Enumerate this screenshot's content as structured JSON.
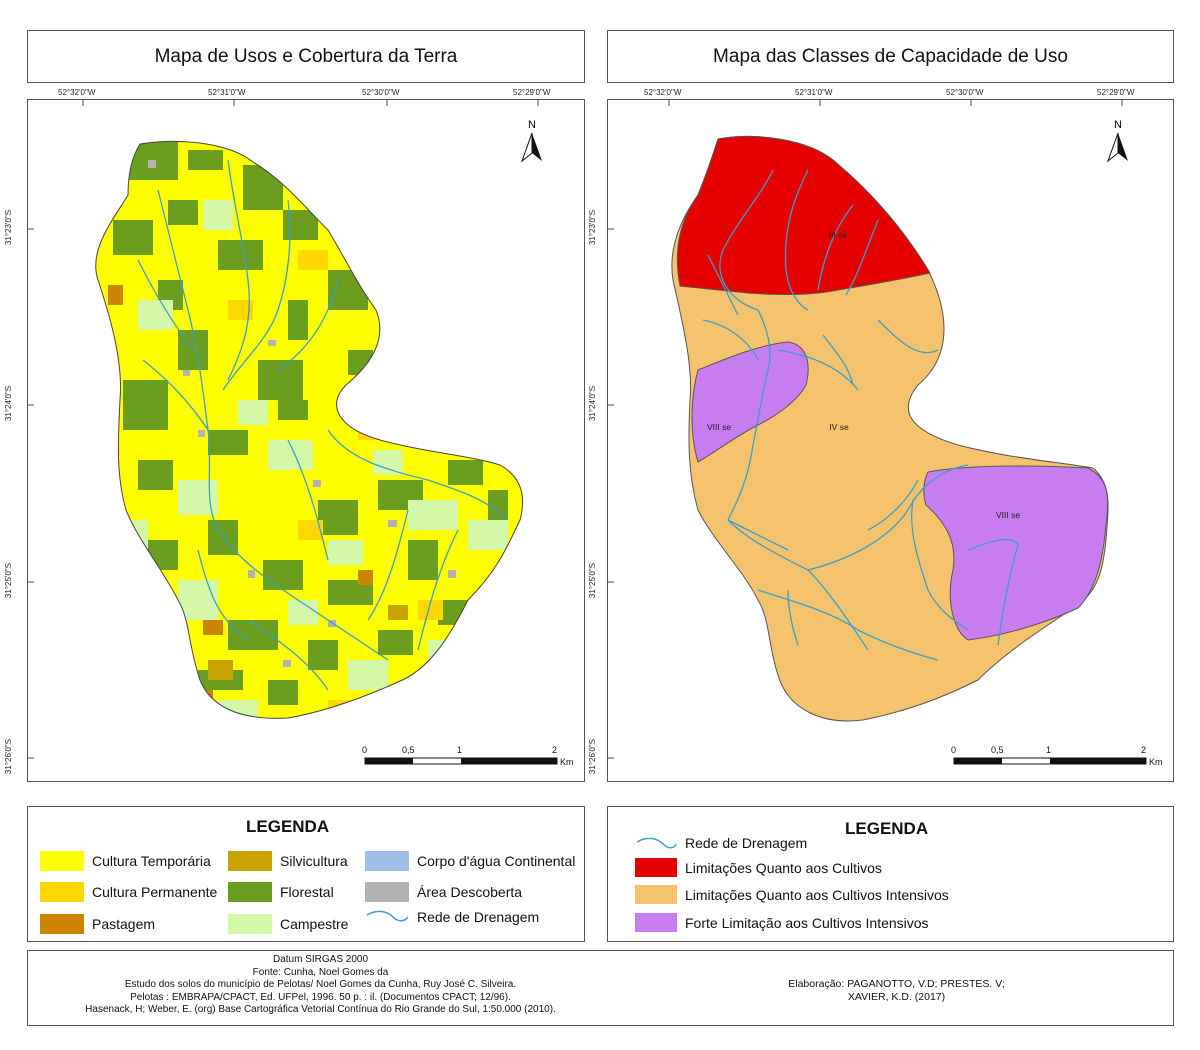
{
  "left_panel": {
    "title": "Mapa de Usos e Cobertura da Terra",
    "lon_labels": [
      "52°32'0\"W",
      "52°31'0\"W",
      "52°30'0\"W",
      "52°29'0\"W"
    ],
    "lat_labels": [
      "31°23'0\"S",
      "31°24'0\"S",
      "31°25'0\"S",
      "31°26'0\"S"
    ],
    "north_label": "N",
    "scale": {
      "ticks": [
        "0",
        "0,5",
        "1",
        "2"
      ],
      "unit": "Km"
    }
  },
  "right_panel": {
    "title": "Mapa das Classes de Capacidade de Uso",
    "lon_labels": [
      "52°32'0\"W",
      "52°31'0\"W",
      "52°30'0\"W",
      "52°29'0\"W"
    ],
    "lat_labels": [
      "31°23'0\"S",
      "31°24'0\"S",
      "31°25'0\"S",
      "31°26'0\"S"
    ],
    "north_label": "N",
    "scale": {
      "ticks": [
        "0",
        "0,5",
        "1",
        "2"
      ],
      "unit": "Km"
    },
    "class_labels": [
      "III se",
      "IV se",
      "VIII se",
      "VIII se"
    ]
  },
  "legend_left": {
    "title": "LEGENDA",
    "items": [
      {
        "label": "Cultura Temporária",
        "color": "#ffff00"
      },
      {
        "label": "Cultura Permanente",
        "color": "#ffd700"
      },
      {
        "label": "Pastagem",
        "color": "#cd8500"
      },
      {
        "label": "Silvicultura",
        "color": "#c9a400"
      },
      {
        "label": "Florestal",
        "color": "#6b9e1f"
      },
      {
        "label": "Campestre",
        "color": "#d4f7a8"
      },
      {
        "label": "Corpo d'água Continental",
        "color": "#9ec0e6"
      },
      {
        "label": "Área Descoberta",
        "color": "#b2b2b2"
      },
      {
        "label": "Rede de Drenagem",
        "color": "#3aa0c8"
      }
    ]
  },
  "legend_right": {
    "title": "LEGENDA",
    "items": [
      {
        "label": "Rede de Drenagem",
        "color": "#3aa0c8"
      },
      {
        "label": "Limitações Quanto aos Cultivos",
        "color": "#e60000"
      },
      {
        "label": "Limitações Quanto aos Cultivos Intensivos",
        "color": "#f5c36e"
      },
      {
        "label": "Forte Limitação aos Cultivos Intensivos",
        "color": "#c77cf0"
      }
    ]
  },
  "credits_left": [
    "Datum SIRGAS 2000",
    "Fonte: Cunha, Noel Gomes da",
    "Estudo dos solos do município de Pelotas/ Noel Gomes da Cunha, Ruy José C. Silveira.",
    "Pelotas : EMBRAPA/CPACT, Ed. UFPel, 1996. 50 p. : il. (Documentos CPACT; 12/96).",
    "Hasenack, H; Weber, E. (org) Base Cartográfica Vetorial Contínua do Rio Grande do Sul, 1:50.000 (2010)."
  ],
  "credits_right": [
    "Elaboração: PAGANOTTO, V.D; PRESTES. V;",
    "XAVIER, K.D. (2017)"
  ]
}
